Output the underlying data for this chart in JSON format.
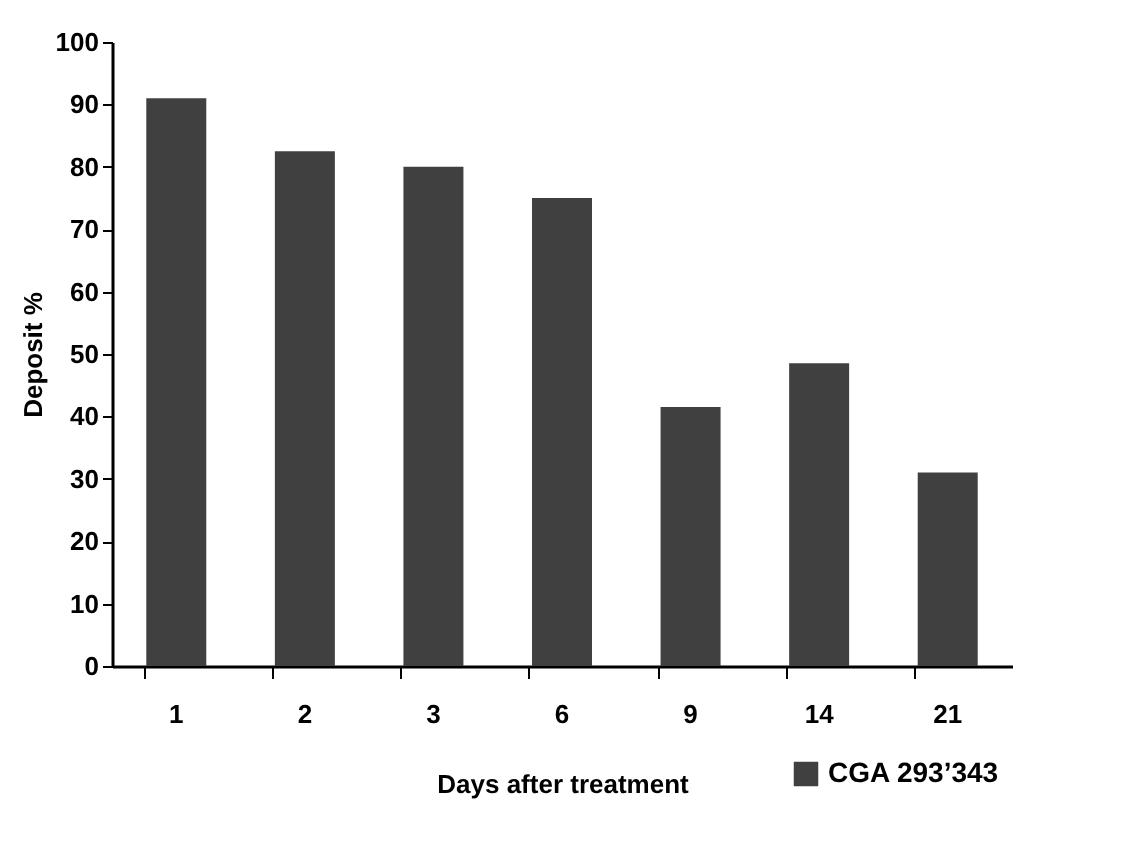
{
  "chart_data": {
    "type": "bar",
    "xlabel": "Days after treatment",
    "ylabel": "Deposit %",
    "categories": [
      "1",
      "2",
      "3",
      "6",
      "9",
      "14",
      "21"
    ],
    "series": [
      {
        "name": "CGA 293’343",
        "color": "#404040",
        "values": [
          91,
          82.5,
          80,
          75,
          41.5,
          48.5,
          31
        ]
      }
    ],
    "ylim": [
      0,
      100
    ],
    "yticks": [
      0,
      10,
      20,
      30,
      40,
      50,
      60,
      70,
      80,
      90,
      100
    ],
    "grid": false,
    "legend": "bottom right"
  }
}
